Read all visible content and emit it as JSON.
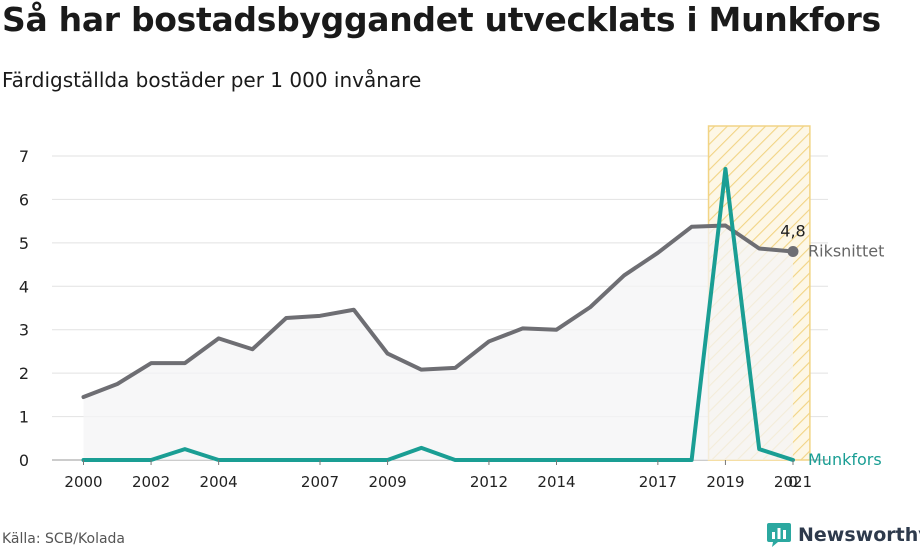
{
  "title": "Så har bostadsbyggandet utvecklats i Munkfors",
  "subtitle": "Färdigställda bostäder per 1 000 invånare",
  "source": "Källa: SCB/Kolada",
  "brand": {
    "name": "Newsworthy",
    "logo_icon": "newsworthy-logo-icon",
    "color": "#2ba8a0"
  },
  "chart_data": {
    "type": "line",
    "title": "Så har bostadsbyggandet utvecklats i Munkfors",
    "subtitle": "Färdigställda bostäder per 1 000 invånare",
    "x": [
      2000,
      2001,
      2002,
      2003,
      2004,
      2005,
      2006,
      2007,
      2008,
      2009,
      2010,
      2011,
      2012,
      2013,
      2014,
      2015,
      2016,
      2017,
      2018,
      2019,
      2020,
      2021
    ],
    "x_tick_labels": [
      "2000",
      "2002",
      "2004",
      "2007",
      "2009",
      "2012",
      "2014",
      "2017",
      "2019",
      "2021"
    ],
    "y_ticks": [
      "0",
      "1",
      "2",
      "3",
      "4",
      "5",
      "6",
      "7"
    ],
    "ylim": [
      0,
      7
    ],
    "grid": true,
    "highlight_range": [
      2019,
      2021
    ],
    "series": [
      {
        "name": "Riksnittet",
        "color": "#6e6e73",
        "fill": "#f4f4f5",
        "values": [
          1.45,
          1.75,
          2.23,
          2.23,
          2.8,
          2.55,
          3.27,
          3.32,
          3.46,
          2.45,
          2.08,
          2.12,
          2.73,
          3.03,
          3.0,
          3.52,
          4.25,
          4.77,
          5.37,
          5.4,
          4.87,
          4.8
        ],
        "end_label": "4,8"
      },
      {
        "name": "Munkfors",
        "color": "#1a9e94",
        "values": [
          0,
          0,
          0,
          0.25,
          0,
          0,
          0,
          0,
          0,
          0,
          0.28,
          0,
          0,
          0,
          0,
          0,
          0,
          0,
          0,
          6.7,
          0.25,
          0
        ],
        "end_label": "0"
      }
    ]
  }
}
